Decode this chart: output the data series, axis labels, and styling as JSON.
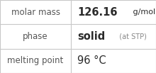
{
  "rows": [
    {
      "label": "molar mass",
      "value_parts": [
        {
          "text": "126.16",
          "bold": true,
          "size": 10.5,
          "color": "#2b2b2b"
        },
        {
          "text": " g/mol",
          "bold": false,
          "size": 8.0,
          "color": "#2b2b2b"
        }
      ]
    },
    {
      "label": "phase",
      "value_parts": [
        {
          "text": "solid",
          "bold": true,
          "size": 10.5,
          "color": "#2b2b2b"
        },
        {
          "text": "  (at STP)",
          "bold": false,
          "size": 7.0,
          "color": "#888888"
        }
      ]
    },
    {
      "label": "melting point",
      "value_parts": [
        {
          "text": "96 °C",
          "bold": false,
          "size": 10.5,
          "color": "#2b2b2b"
        }
      ]
    }
  ],
  "col_split": 0.455,
  "background_color": "#ffffff",
  "border_color": "#c8c8c8",
  "label_color": "#555555",
  "label_fontsize": 8.5,
  "fig_width": 2.2,
  "fig_height": 1.03,
  "dpi": 100
}
